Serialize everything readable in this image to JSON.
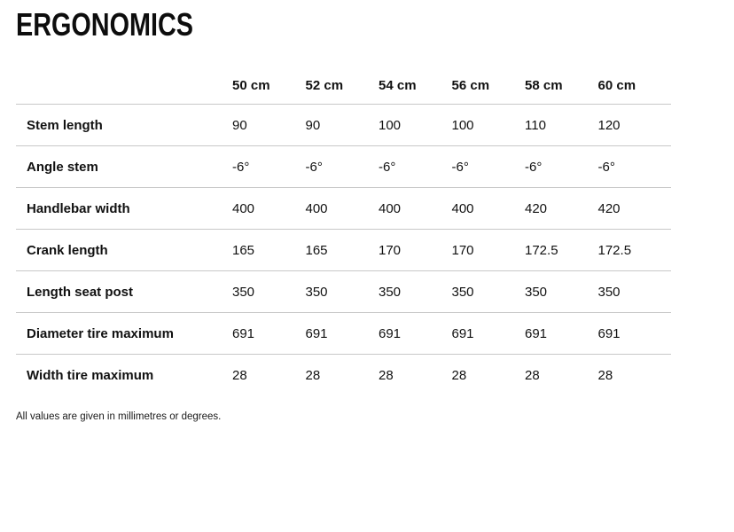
{
  "page": {
    "title": "ERGONOMICS",
    "footnote": "All values are given in millimetres or degrees."
  },
  "table": {
    "sizes": [
      "50 cm",
      "52 cm",
      "54 cm",
      "56 cm",
      "58 cm",
      "60 cm"
    ],
    "rows": [
      {
        "label": "Stem length",
        "values": [
          "90",
          "90",
          "100",
          "100",
          "110",
          "120"
        ]
      },
      {
        "label": "Angle stem",
        "values": [
          "-6°",
          "-6°",
          "-6°",
          "-6°",
          "-6°",
          "-6°"
        ]
      },
      {
        "label": "Handlebar width",
        "values": [
          "400",
          "400",
          "400",
          "400",
          "420",
          "420"
        ]
      },
      {
        "label": "Crank length",
        "values": [
          "165",
          "165",
          "170",
          "170",
          "172.5",
          "172.5"
        ]
      },
      {
        "label": "Length seat post",
        "values": [
          "350",
          "350",
          "350",
          "350",
          "350",
          "350"
        ]
      },
      {
        "label": "Diameter tire maximum",
        "values": [
          "691",
          "691",
          "691",
          "691",
          "691",
          "691"
        ]
      },
      {
        "label": "Width tire maximum",
        "values": [
          "28",
          "28",
          "28",
          "28",
          "28",
          "28"
        ]
      }
    ]
  },
  "colors": {
    "background": "#ffffff",
    "text": "#111111",
    "divider": "#c8c8c8"
  }
}
